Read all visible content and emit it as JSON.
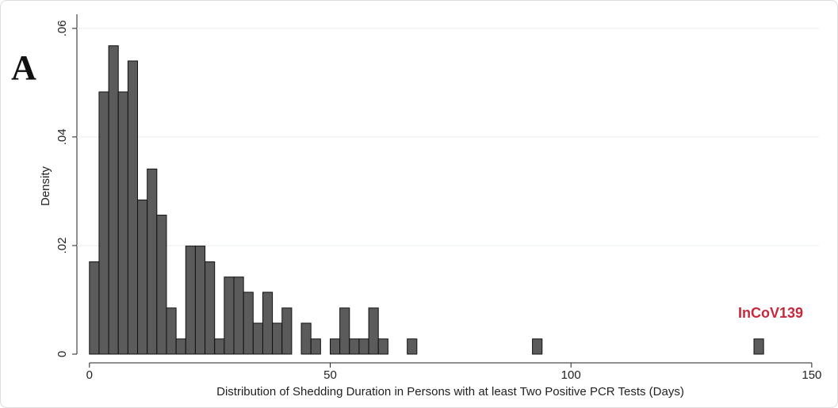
{
  "chart_data": {
    "type": "histogram",
    "panel_label": "A",
    "annotation": "InCoV139",
    "xlabel": "Distribution of Shedding Duration in Persons with at least Two Positive PCR Tests (Days)",
    "ylabel": "Density",
    "color": "#5b5b5b",
    "annotation_color": "#c8283c",
    "grid": true,
    "bins": [
      0,
      2,
      4,
      6,
      8,
      10,
      12,
      14,
      16,
      18,
      20,
      22,
      24,
      26,
      28,
      30,
      32,
      34,
      36,
      38,
      40,
      42,
      44,
      46,
      48,
      50,
      52,
      54,
      56,
      58,
      60,
      62,
      64,
      66,
      68,
      70,
      72,
      74,
      76,
      78,
      80,
      82,
      84,
      86,
      88,
      90,
      92,
      94,
      96,
      98,
      100,
      102,
      104,
      106,
      108,
      110,
      112,
      114,
      116,
      118,
      120,
      122,
      124,
      126,
      128,
      130,
      132,
      134,
      136,
      138,
      140
    ],
    "values": [
      0.017,
      0.0483,
      0.0568,
      0.0483,
      0.054,
      0.0284,
      0.0341,
      0.0256,
      0.0085,
      0.0028,
      0.0199,
      0.0199,
      0.017,
      0.0028,
      0.0142,
      0.0142,
      0.0114,
      0.0057,
      0.0114,
      0.0057,
      0.0085,
      0,
      0.0057,
      0.0028,
      0,
      0.0028,
      0.0085,
      0.0028,
      0.0028,
      0.0085,
      0.0028,
      0,
      0,
      0.0028,
      0,
      0,
      0,
      0,
      0,
      0,
      0,
      0,
      0,
      0,
      0,
      0,
      0.0028,
      0,
      0,
      0,
      0,
      0,
      0,
      0,
      0,
      0,
      0,
      0,
      0,
      0,
      0,
      0,
      0,
      0,
      0,
      0,
      0,
      0,
      0,
      0.0028
    ],
    "xlim": [
      -2.6,
      151.5
    ],
    "ylim": [
      0,
      0.0626
    ],
    "xticks": [
      0,
      50,
      100,
      150
    ],
    "yticks": [
      0,
      {
        "value": 0.02,
        "label": ".02"
      },
      {
        "value": 0.04,
        "label": ".04"
      },
      {
        "value": 0.06,
        "label": ".06"
      }
    ]
  }
}
